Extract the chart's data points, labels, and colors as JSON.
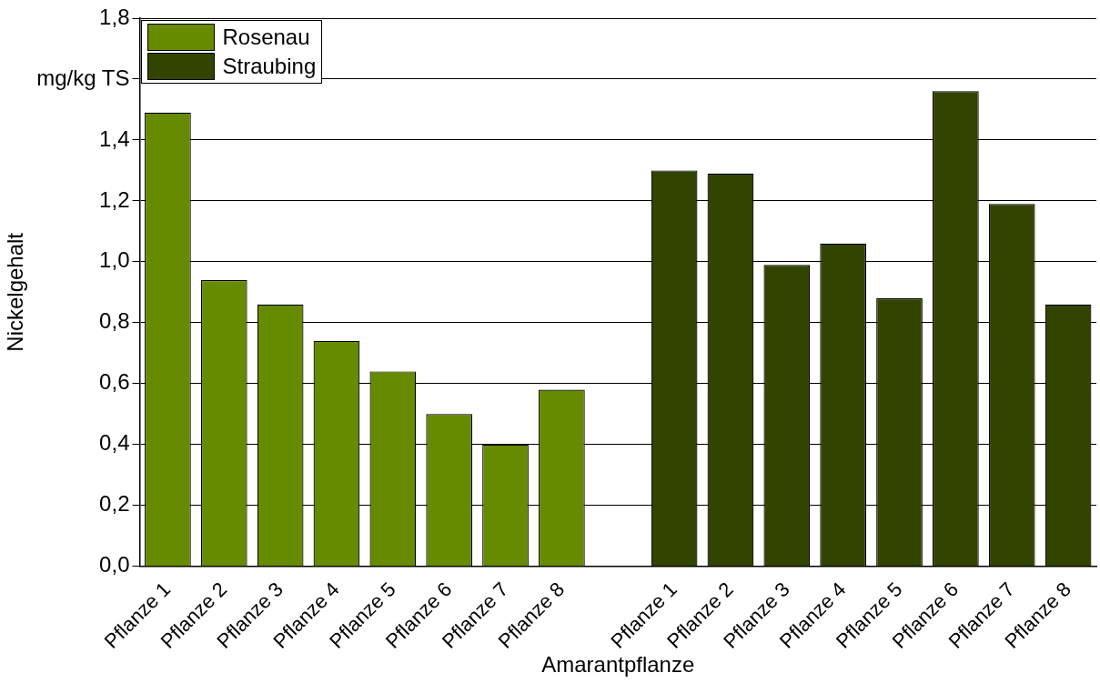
{
  "chart_data": {
    "type": "bar",
    "xlabel": "Amarantpflanze",
    "ylabel": "Nickelgehalt",
    "categories": [
      "Pflanze 1",
      "Pflanze 2",
      "Pflanze 3",
      "Pflanze 4",
      "Pflanze 5",
      "Pflanze 6",
      "Pflanze 7",
      "Pflanze 8",
      null,
      "Pflanze 1",
      "Pflanze 2",
      "Pflanze 3",
      "Pflanze 4",
      "Pflanze 5",
      "Pflanze 6",
      "Pflanze 7",
      "Pflanze 8"
    ],
    "series": [
      {
        "name": "Rosenau",
        "color": "#668a00",
        "values": [
          1.49,
          0.94,
          0.86,
          0.74,
          0.64,
          0.5,
          0.4,
          0.58,
          null,
          null,
          null,
          null,
          null,
          null,
          null,
          null,
          null
        ]
      },
      {
        "name": "Straubing",
        "color": "#334400",
        "values": [
          null,
          null,
          null,
          null,
          null,
          null,
          null,
          null,
          null,
          1.3,
          1.29,
          0.99,
          1.06,
          0.88,
          1.56,
          1.19,
          0.86
        ]
      }
    ],
    "ylim": [
      0,
      1.8
    ],
    "yticks": [
      {
        "value": 0,
        "label": "0,0"
      },
      {
        "value": 0.2,
        "label": "0,2"
      },
      {
        "value": 0.4,
        "label": "0,4"
      },
      {
        "value": 0.6,
        "label": "0,6"
      },
      {
        "value": 0.8,
        "label": "0,8"
      },
      {
        "value": 1.0,
        "label": "1,0"
      },
      {
        "value": 1.2,
        "label": "1,2"
      },
      {
        "value": 1.4,
        "label": "1,4"
      },
      {
        "value": 1.6,
        "label": "mg/kg TS"
      },
      {
        "value": 1.8,
        "label": "1,8"
      }
    ],
    "grid": "y",
    "legend": "top left"
  }
}
